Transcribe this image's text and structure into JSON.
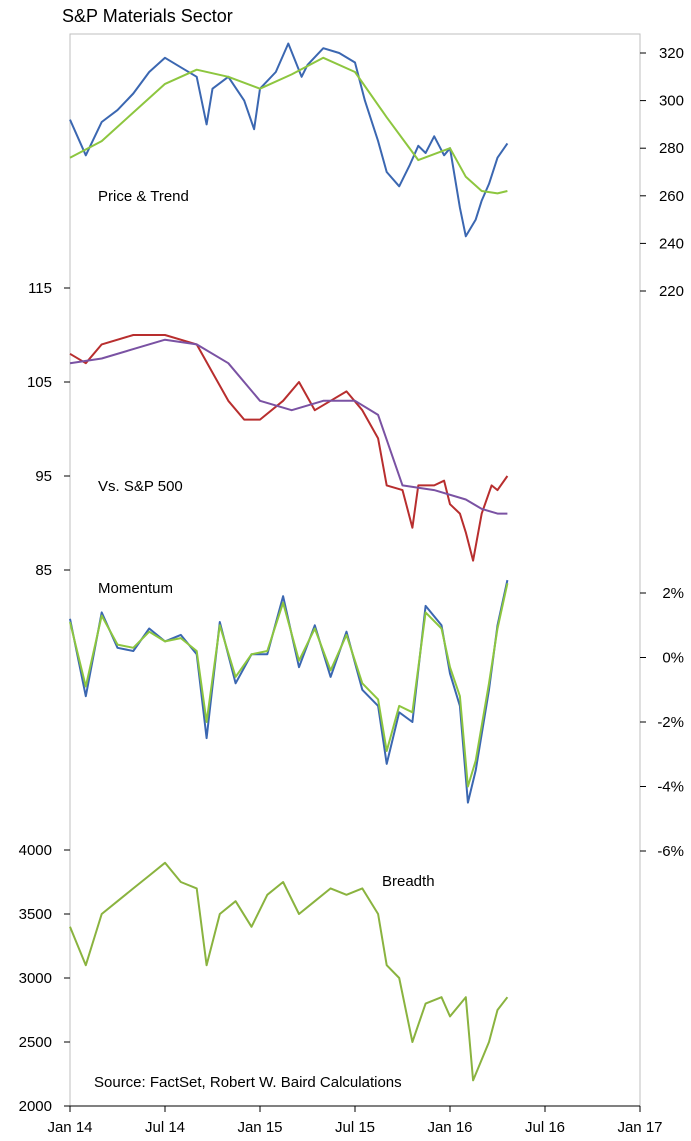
{
  "chart_data": {
    "type": "line",
    "title": "S&P Materials Sector",
    "source": "Source: FactSet, Robert W. Baird Calculations",
    "x_tick_labels": [
      "Jan 14",
      "Jul 14",
      "Jan 15",
      "Jul 15",
      "Jan 16",
      "Jul 16",
      "Jan 17"
    ],
    "x_range": [
      "2014-01",
      "2017-01"
    ],
    "panels": [
      {
        "label": "Price & Trend",
        "axis": "right",
        "ylim": [
          220,
          330
        ],
        "ticks": [
          "320",
          "300",
          "280",
          "260",
          "240",
          "220"
        ],
        "series": [
          {
            "color": "#3b67b1",
            "role": "price",
            "x": [
              "2014-01-01",
              "2014-02-01",
              "2014-03-01",
              "2014-04-01",
              "2014-05-01",
              "2014-06-01",
              "2014-07-01",
              "2014-08-01",
              "2014-09-01",
              "2014-09-20",
              "2014-10-01",
              "2014-11-01",
              "2014-12-01",
              "2014-12-20",
              "2015-01-01",
              "2015-02-01",
              "2015-02-25",
              "2015-03-20",
              "2015-04-01",
              "2015-05-01",
              "2015-06-01",
              "2015-07-01",
              "2015-07-20",
              "2015-08-15",
              "2015-09-01",
              "2015-09-25",
              "2015-10-15",
              "2015-11-01",
              "2015-11-15",
              "2015-12-01",
              "2015-12-20",
              "2016-01-01",
              "2016-01-20",
              "2016-02-01",
              "2016-02-20",
              "2016-03-01",
              "2016-03-15",
              "2016-04-01",
              "2016-04-20"
            ],
            "y": [
              292,
              277,
              291,
              296,
              303,
              312,
              318,
              314,
              310,
              290,
              305,
              310,
              300,
              288,
              305,
              312,
              324,
              310,
              315,
              322,
              320,
              316,
              300,
              283,
              270,
              264,
              273,
              281,
              278,
              285,
              277,
              280,
              255,
              243,
              250,
              258,
              265,
              276,
              282
            ]
          },
          {
            "color": "#8dc63f",
            "role": "trend",
            "x": [
              "2014-01-01",
              "2014-03-01",
              "2014-05-01",
              "2014-07-01",
              "2014-09-01",
              "2014-11-01",
              "2015-01-01",
              "2015-03-01",
              "2015-05-01",
              "2015-07-01",
              "2015-09-01",
              "2015-11-01",
              "2016-01-01",
              "2016-02-01",
              "2016-03-01",
              "2016-04-01",
              "2016-04-20"
            ],
            "y": [
              276,
              283,
              295,
              307,
              313,
              310,
              305,
              311,
              318,
              312,
              293,
              275,
              280,
              268,
              262,
              261,
              262
            ]
          }
        ]
      },
      {
        "label": "Vs. S&P 500",
        "axis": "left",
        "ylim": [
          85,
          115
        ],
        "ticks": [
          "115",
          "105",
          "95",
          "85"
        ],
        "series": [
          {
            "color": "#b82e2e",
            "role": "relative",
            "x": [
              "2014-01-01",
              "2014-02-01",
              "2014-03-01",
              "2014-05-01",
              "2014-07-01",
              "2014-09-01",
              "2014-10-01",
              "2014-11-01",
              "2014-12-01",
              "2015-01-01",
              "2015-02-15",
              "2015-03-15",
              "2015-04-15",
              "2015-05-15",
              "2015-06-15",
              "2015-07-15",
              "2015-08-15",
              "2015-09-01",
              "2015-10-01",
              "2015-10-20",
              "2015-11-01",
              "2015-12-01",
              "2015-12-20",
              "2016-01-01",
              "2016-01-20",
              "2016-02-01",
              "2016-02-15",
              "2016-03-01",
              "2016-03-20",
              "2016-04-01",
              "2016-04-20"
            ],
            "y": [
              108,
              107,
              109,
              110,
              110,
              109,
              106,
              103,
              101,
              101,
              103,
              105,
              102,
              103,
              104,
              102,
              99,
              94,
              93.5,
              89.5,
              94,
              94,
              94.5,
              92,
              91,
              89,
              86,
              91,
              94,
              93.5,
              95
            ]
          },
          {
            "color": "#7a52a3",
            "role": "trend",
            "x": [
              "2014-01-01",
              "2014-03-01",
              "2014-05-01",
              "2014-07-01",
              "2014-09-01",
              "2014-11-01",
              "2015-01-01",
              "2015-03-01",
              "2015-05-01",
              "2015-07-01",
              "2015-08-15",
              "2015-10-01",
              "2015-12-01",
              "2016-02-01",
              "2016-03-01",
              "2016-04-01",
              "2016-04-20"
            ],
            "y": [
              107,
              107.5,
              108.5,
              109.5,
              109,
              107,
              103,
              102,
              103,
              103,
              101.5,
              94,
              93.5,
              92.5,
              91.5,
              91,
              91
            ]
          }
        ]
      },
      {
        "label": "Momentum",
        "axis": "right",
        "ylim": [
          -6,
          2.5
        ],
        "ticks": [
          "2%",
          "0%",
          "-2%",
          "-4%",
          "-6%"
        ],
        "series": [
          {
            "color": "#3b67b1",
            "role": "momentum",
            "x": [
              "2014-01-01",
              "2014-02-01",
              "2014-03-01",
              "2014-04-01",
              "2014-05-01",
              "2014-06-01",
              "2014-07-01",
              "2014-08-01",
              "2014-09-01",
              "2014-09-20",
              "2014-10-15",
              "2014-11-15",
              "2014-12-15",
              "2015-01-15",
              "2015-02-15",
              "2015-03-15",
              "2015-04-15",
              "2015-05-15",
              "2015-06-15",
              "2015-07-15",
              "2015-08-15",
              "2015-09-01",
              "2015-09-25",
              "2015-10-20",
              "2015-11-15",
              "2015-12-15",
              "2016-01-01",
              "2016-01-20",
              "2016-02-05",
              "2016-02-20",
              "2016-03-15",
              "2016-04-01",
              "2016-04-20"
            ],
            "y": [
              1.2,
              -1.2,
              1.4,
              0.3,
              0.2,
              0.9,
              0.5,
              0.7,
              0.1,
              -2.5,
              1.1,
              -0.8,
              0.1,
              0.1,
              1.9,
              -0.3,
              1.0,
              -0.6,
              0.8,
              -1.0,
              -1.5,
              -3.3,
              -1.7,
              -2.0,
              1.6,
              1.0,
              -0.5,
              -1.5,
              -4.5,
              -3.5,
              -1.0,
              1.0,
              2.4
            ]
          },
          {
            "color": "#8dc63f",
            "role": "momentum-avg",
            "x": [
              "2014-01-01",
              "2014-02-01",
              "2014-03-01",
              "2014-04-01",
              "2014-05-01",
              "2014-06-01",
              "2014-07-01",
              "2014-08-01",
              "2014-09-01",
              "2014-09-20",
              "2014-10-15",
              "2014-11-15",
              "2014-12-15",
              "2015-01-15",
              "2015-02-15",
              "2015-03-15",
              "2015-04-15",
              "2015-05-15",
              "2015-06-15",
              "2015-07-15",
              "2015-08-15",
              "2015-09-01",
              "2015-09-25",
              "2015-10-20",
              "2015-11-15",
              "2015-12-15",
              "2016-01-01",
              "2016-01-20",
              "2016-02-05",
              "2016-02-20",
              "2016-03-15",
              "2016-04-01",
              "2016-04-20"
            ],
            "y": [
              1.1,
              -0.9,
              1.3,
              0.4,
              0.3,
              0.8,
              0.5,
              0.6,
              0.2,
              -2.0,
              1.0,
              -0.6,
              0.1,
              0.2,
              1.7,
              -0.1,
              0.9,
              -0.4,
              0.7,
              -0.8,
              -1.3,
              -2.9,
              -1.5,
              -1.7,
              1.4,
              0.9,
              -0.3,
              -1.2,
              -4.0,
              -3.2,
              -0.8,
              0.9,
              2.3
            ]
          }
        ]
      },
      {
        "label": "Breadth",
        "axis": "left",
        "ylim": [
          2000,
          4000
        ],
        "ticks": [
          "4000",
          "3500",
          "3000",
          "2500",
          "2000"
        ],
        "series": [
          {
            "color": "#8ab33f",
            "role": "breadth",
            "x": [
              "2014-01-01",
              "2014-02-01",
              "2014-03-01",
              "2014-04-01",
              "2014-05-01",
              "2014-06-01",
              "2014-07-01",
              "2014-08-01",
              "2014-09-01",
              "2014-09-20",
              "2014-10-15",
              "2014-11-15",
              "2014-12-15",
              "2015-01-15",
              "2015-02-15",
              "2015-03-15",
              "2015-04-15",
              "2015-05-15",
              "2015-06-15",
              "2015-07-15",
              "2015-08-15",
              "2015-09-01",
              "2015-09-25",
              "2015-10-20",
              "2015-11-15",
              "2015-12-15",
              "2016-01-01",
              "2016-02-01",
              "2016-02-15",
              "2016-03-15",
              "2016-04-01",
              "2016-04-20"
            ],
            "y": [
              3400,
              3100,
              3500,
              3600,
              3700,
              3800,
              3900,
              3750,
              3700,
              3100,
              3500,
              3600,
              3400,
              3650,
              3750,
              3500,
              3600,
              3700,
              3650,
              3700,
              3500,
              3100,
              3000,
              2500,
              2800,
              2850,
              2700,
              2850,
              2200,
              2500,
              2750,
              2850
            ]
          }
        ]
      }
    ]
  }
}
